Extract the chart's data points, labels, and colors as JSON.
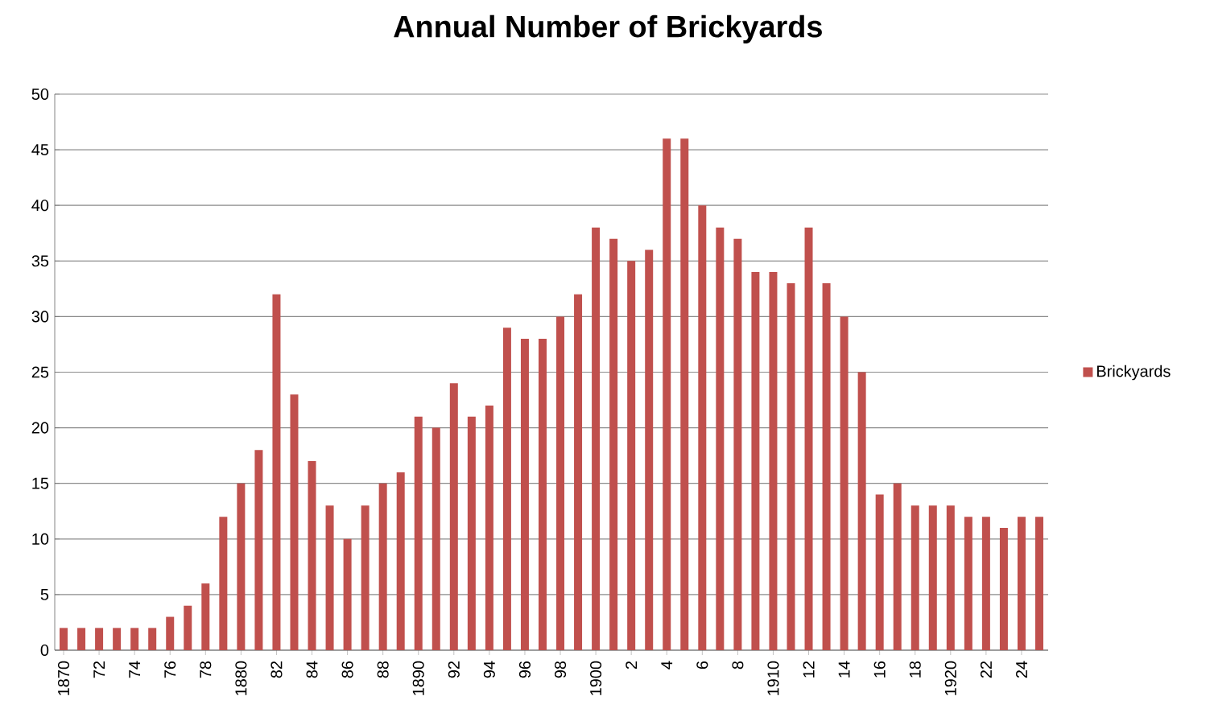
{
  "chart_data": {
    "type": "bar",
    "title": "Annual Number of Brickyards",
    "categories": [
      "1870",
      null,
      "72",
      null,
      "74",
      null,
      "76",
      null,
      "78",
      null,
      "1880",
      null,
      "82",
      null,
      "84",
      null,
      "86",
      null,
      "88",
      null,
      "1890",
      null,
      "92",
      null,
      "94",
      null,
      "96",
      null,
      "98",
      null,
      "1900",
      null,
      "2",
      null,
      "4",
      null,
      "6",
      null,
      "8",
      null,
      "1910",
      null,
      "12",
      null,
      "14",
      null,
      "16",
      null,
      "18",
      null,
      "1920",
      null,
      "22",
      null,
      "24",
      null
    ],
    "series": [
      {
        "name": "Brickyards",
        "color": "#c0504d",
        "values": [
          2,
          2,
          2,
          2,
          2,
          2,
          3,
          4,
          6,
          12,
          15,
          18,
          32,
          23,
          17,
          13,
          10,
          13,
          15,
          16,
          21,
          20,
          24,
          21,
          22,
          29,
          28,
          28,
          30,
          32,
          38,
          37,
          35,
          36,
          46,
          46,
          40,
          38,
          37,
          34,
          34,
          33,
          38,
          33,
          30,
          25,
          14,
          15,
          13,
          13,
          13,
          12,
          12,
          11,
          12,
          12
        ]
      }
    ],
    "ylim": [
      0,
      50
    ],
    "yticks": [
      0,
      5,
      10,
      15,
      20,
      25,
      30,
      35,
      40,
      45,
      50
    ],
    "grid": "y",
    "legend": "right"
  }
}
